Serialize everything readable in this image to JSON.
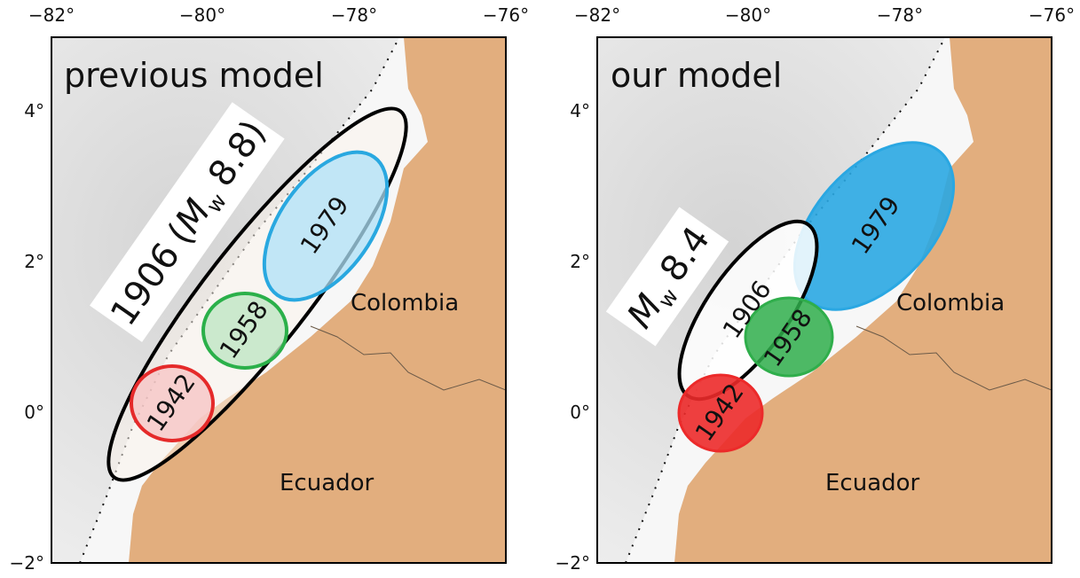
{
  "panels": [
    {
      "title": "previous model",
      "lon_ticks": [
        "−82°",
        "−80°",
        "−78°",
        "−76°"
      ],
      "lat_ticks": [
        "4°",
        "2°",
        "0°",
        "−2°"
      ],
      "countries": {
        "north": "Colombia",
        "south": "Ecuador"
      },
      "ruptures": {
        "blue": "1979",
        "green": "1958",
        "red": "1942"
      },
      "magnitude": {
        "year": "1906",
        "open": "(",
        "symbol": "M",
        "subscript": "w",
        "value": "8.8)"
      }
    },
    {
      "title": "our model",
      "lon_ticks": [
        "−82°",
        "−80°",
        "−78°",
        "−76°"
      ],
      "lat_ticks": [
        "4°",
        "2°",
        "0°",
        "−2°"
      ],
      "countries": {
        "north": "Colombia",
        "south": "Ecuador"
      },
      "ruptures": {
        "blue": "1979",
        "black": "1906",
        "green": "1958",
        "red": "1942"
      },
      "magnitude": {
        "symbol": "M",
        "subscript": "w",
        "value": "8.4"
      }
    }
  ]
}
